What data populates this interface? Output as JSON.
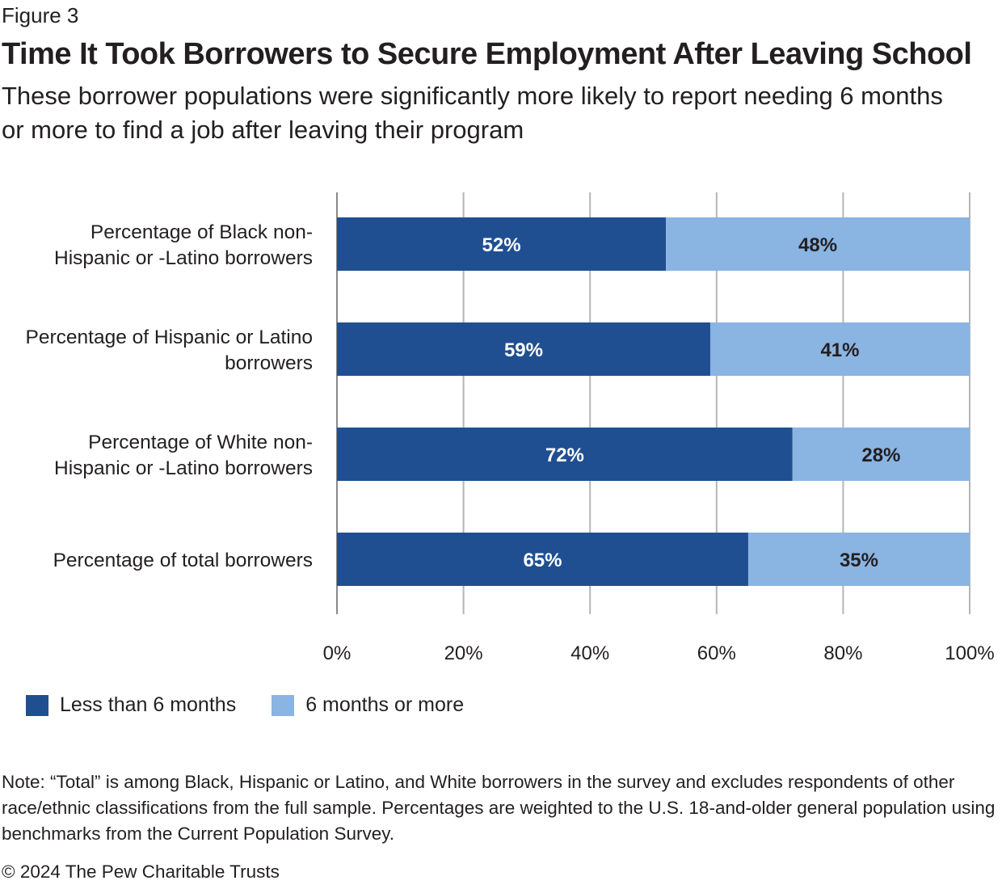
{
  "figure_label": "Figure 3",
  "title": "Time It Took Borrowers to Secure Employment After Leaving School",
  "subtitle": "These borrower populations were significantly more likely to report needing 6 months or more to find a job after leaving their program",
  "chart_data": {
    "type": "bar",
    "orientation": "horizontal",
    "stacked": true,
    "categories": [
      [
        "Percentage of Black non-",
        "Hispanic or -Latino borrowers"
      ],
      [
        "Percentage of Hispanic or Latino",
        "borrowers"
      ],
      [
        "Percentage of White non-",
        "Hispanic or -Latino borrowers"
      ],
      [
        "Percentage of total borrowers"
      ]
    ],
    "series": [
      {
        "name": "Less than 6 months",
        "values": [
          52,
          59,
          72,
          65
        ],
        "color": "#204f91",
        "label_color": "#ffffff"
      },
      {
        "name": "6 months or more",
        "values": [
          48,
          41,
          28,
          35
        ],
        "color": "#8ab4e2",
        "label_color": "#231f20"
      }
    ],
    "xlim": [
      0,
      100
    ],
    "x_ticks": [
      0,
      20,
      40,
      60,
      80,
      100
    ],
    "x_tick_labels": [
      "0%",
      "20%",
      "40%",
      "60%",
      "80%",
      "100%"
    ],
    "value_suffix": "%",
    "grid": true,
    "legend_position": "bottom-left"
  },
  "legend": [
    {
      "label": "Less than 6 months",
      "color": "#204f91"
    },
    {
      "label": "6 months or more",
      "color": "#8ab4e2"
    }
  ],
  "note": "Note: “Total” is among Black, Hispanic or Latino, and White borrowers in the survey and excludes respondents of other race/ethnic classifications from the full sample. Percentages are weighted to the U.S. 18-and-older general population using benchmarks from the Current Population Survey.",
  "copyright": "© 2024 The Pew Charitable Trusts"
}
